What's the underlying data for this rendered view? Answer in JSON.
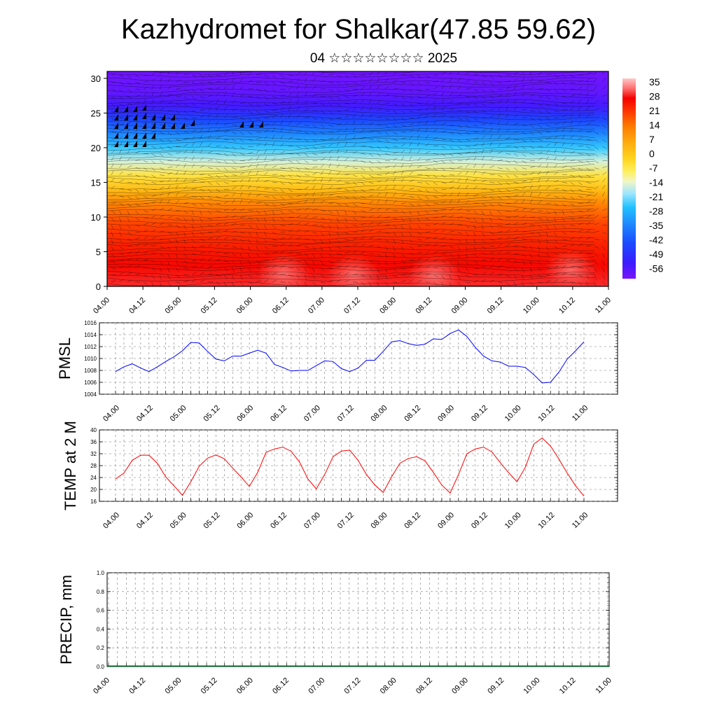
{
  "title": "Kazhydromet for Shalkar(47.85 59.62)",
  "subtitle": "04 ☆☆☆☆☆☆☆☆ 2025",
  "chart_data": [
    {
      "type": "heatmap",
      "description": "vertical cross-section of temperature with wind barbs",
      "y_ticks": [
        0,
        5,
        10,
        15,
        20,
        25,
        30
      ],
      "ylim": [
        0,
        31
      ],
      "x_ticks": [
        "04.00",
        "04.12",
        "05.00",
        "05.12",
        "06.00",
        "06.12",
        "07.00",
        "07.12",
        "08.00",
        "08.12",
        "09.00",
        "09.12",
        "10.00",
        "10.12",
        "11.00"
      ],
      "colorbar": {
        "labels": [
          "35",
          "28",
          "21",
          "14",
          "7",
          "0",
          "-7",
          "-14",
          "-21",
          "-28",
          "-35",
          "-42",
          "-49",
          "-56"
        ],
        "range": [
          -63,
          38
        ]
      },
      "profile": [
        {
          "level": 0,
          "value": 30
        },
        {
          "level": 3,
          "value": 27
        },
        {
          "level": 6,
          "value": 24
        },
        {
          "level": 9,
          "value": 20
        },
        {
          "level": 12,
          "value": 12
        },
        {
          "level": 14,
          "value": 2
        },
        {
          "level": 16,
          "value": -6
        },
        {
          "level": 18,
          "value": -16
        },
        {
          "level": 20,
          "value": -26
        },
        {
          "level": 22,
          "value": -36
        },
        {
          "level": 24,
          "value": -46
        },
        {
          "level": 26,
          "value": -56
        },
        {
          "level": 28,
          "value": -60
        },
        {
          "level": 31,
          "value": -62
        }
      ]
    },
    {
      "type": "line",
      "ylabel": "PMSL",
      "ylim": [
        1004,
        1016
      ],
      "y_ticks": [
        1004,
        1006,
        1008,
        1010,
        1012,
        1014,
        1016
      ],
      "x_ticks": [
        "04.00",
        "04.12",
        "05.00",
        "05.12",
        "06.00",
        "06.12",
        "07.00",
        "07.12",
        "08.00",
        "08.12",
        "09.00",
        "09.12",
        "10.00",
        "10.12",
        "11.00"
      ],
      "color": "#0000ff",
      "values": [
        1007.8,
        1008.6,
        1009.1,
        1008.4,
        1007.8,
        1008.6,
        1009.5,
        1010.3,
        1011.3,
        1012.7,
        1012.6,
        1011.2,
        1009.9,
        1009.6,
        1010.4,
        1010.4,
        1010.9,
        1011.4,
        1010.9,
        1009.0,
        1008.5,
        1007.9,
        1008.0,
        1008.0,
        1008.8,
        1009.6,
        1009.5,
        1008.3,
        1007.8,
        1008.4,
        1009.7,
        1009.7,
        1011.2,
        1012.8,
        1013.0,
        1012.5,
        1012.2,
        1012.4,
        1013.3,
        1013.2,
        1014.2,
        1014.8,
        1013.7,
        1011.9,
        1010.4,
        1009.6,
        1009.4,
        1008.7,
        1008.7,
        1008.5,
        1007.3,
        1005.9,
        1006.0,
        1007.7,
        1009.9,
        1011.3,
        1012.8
      ]
    },
    {
      "type": "line",
      "ylabel": "TEMP at 2 M",
      "ylim": [
        16,
        40
      ],
      "y_ticks": [
        16,
        20,
        24,
        28,
        32,
        36,
        40
      ],
      "x_ticks": [
        "04.00",
        "04.12",
        "05.00",
        "05.12",
        "06.00",
        "06.12",
        "07.00",
        "07.12",
        "08.00",
        "08.12",
        "09.00",
        "09.12",
        "10.00",
        "10.12",
        "11.00"
      ],
      "color": "#ff0000",
      "values": [
        23.5,
        25.5,
        29.8,
        31.5,
        31.5,
        28.8,
        24.2,
        21.2,
        18.0,
        22.6,
        27.8,
        30.5,
        31.6,
        30.3,
        27.2,
        24.2,
        21.0,
        25.8,
        32.5,
        33.6,
        34.2,
        32.8,
        29.2,
        23.5,
        20.2,
        25.0,
        31.0,
        32.9,
        33.2,
        29.8,
        25.0,
        21.5,
        19.0,
        24.2,
        28.8,
        30.4,
        31.0,
        29.6,
        25.7,
        21.5,
        18.8,
        25.0,
        32.0,
        33.6,
        34.2,
        32.6,
        29.0,
        25.6,
        22.6,
        27.5,
        35.2,
        37.3,
        34.6,
        30.2,
        25.5,
        21.2,
        17.8
      ]
    },
    {
      "type": "bar",
      "ylabel": "PRECIP, mm",
      "ylim": [
        0,
        1.0
      ],
      "y_ticks": [
        "0.0",
        "0.2",
        "0.4",
        "0.6",
        "0.8",
        "1.0"
      ],
      "x_ticks": [
        "04.00",
        "04.12",
        "05.00",
        "05.12",
        "06.00",
        "06.12",
        "07.00",
        "07.12",
        "08.00",
        "08.12",
        "09.00",
        "09.12",
        "10.00",
        "10.12",
        "11.00"
      ],
      "values": [
        0,
        0,
        0,
        0,
        0,
        0,
        0,
        0,
        0,
        0,
        0,
        0,
        0,
        0,
        0,
        0,
        0,
        0,
        0,
        0,
        0,
        0,
        0,
        0,
        0,
        0,
        0,
        0,
        0,
        0,
        0,
        0,
        0,
        0,
        0,
        0,
        0,
        0,
        0,
        0,
        0,
        0,
        0,
        0,
        0,
        0,
        0,
        0,
        0,
        0,
        0,
        0,
        0,
        0,
        0,
        0,
        0
      ]
    }
  ]
}
